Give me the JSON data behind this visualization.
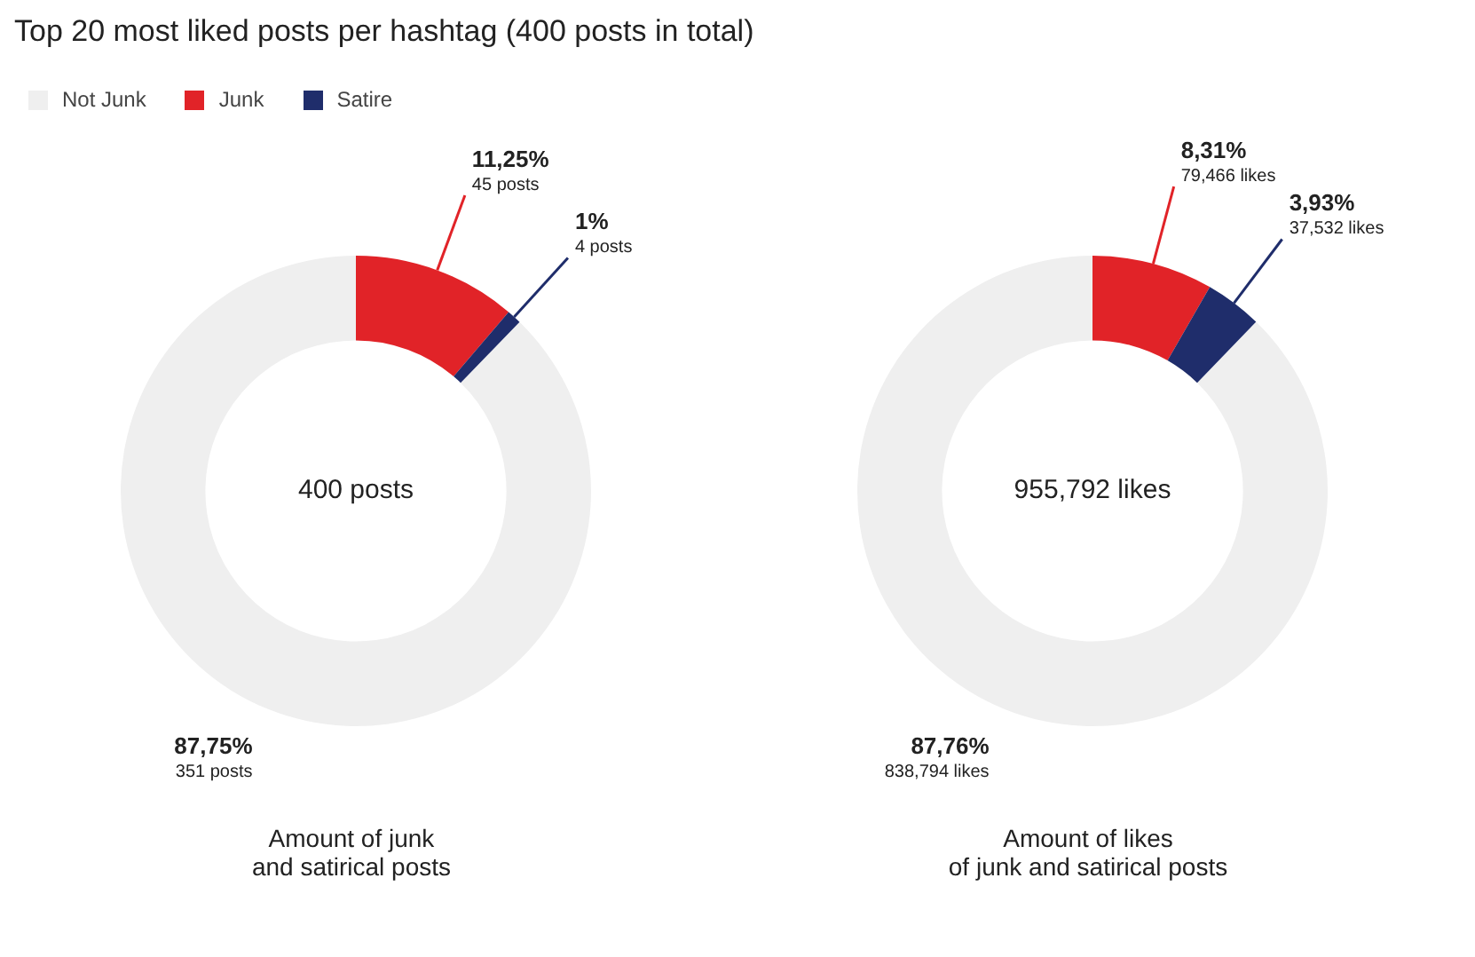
{
  "chart_data": [
    {
      "type": "donut",
      "title": "Top 20 most liked posts per hashtag (400 posts in total)",
      "categories": [
        "Not Junk",
        "Junk",
        "Satire"
      ],
      "values": [
        351,
        45,
        4
      ],
      "colors": [
        "#efefef",
        "#e12328",
        "#1f2d6b"
      ],
      "value_labels": [
        "87,75%\n351 posts",
        "11,25%\n45 posts",
        "1%\n4 posts"
      ],
      "annotations": [
        "400 posts"
      ],
      "xlabel": "Amount of junk\nand satirical posts",
      "legend": "top left"
    },
    {
      "type": "donut",
      "categories": [
        null,
        null,
        null
      ],
      "values": [
        838794,
        79466,
        37532
      ],
      "colors": [
        "#efefef",
        "#e12328",
        "#1f2d6b"
      ],
      "value_labels": [
        "87,76%\n838,794 likes",
        "8,31%\n79,466 likes",
        "3,93%\n37,532 likes"
      ],
      "annotations": [
        "955,792 likes"
      ],
      "xlabel": "Amount of likes\nof junk and satirical posts"
    }
  ]
}
